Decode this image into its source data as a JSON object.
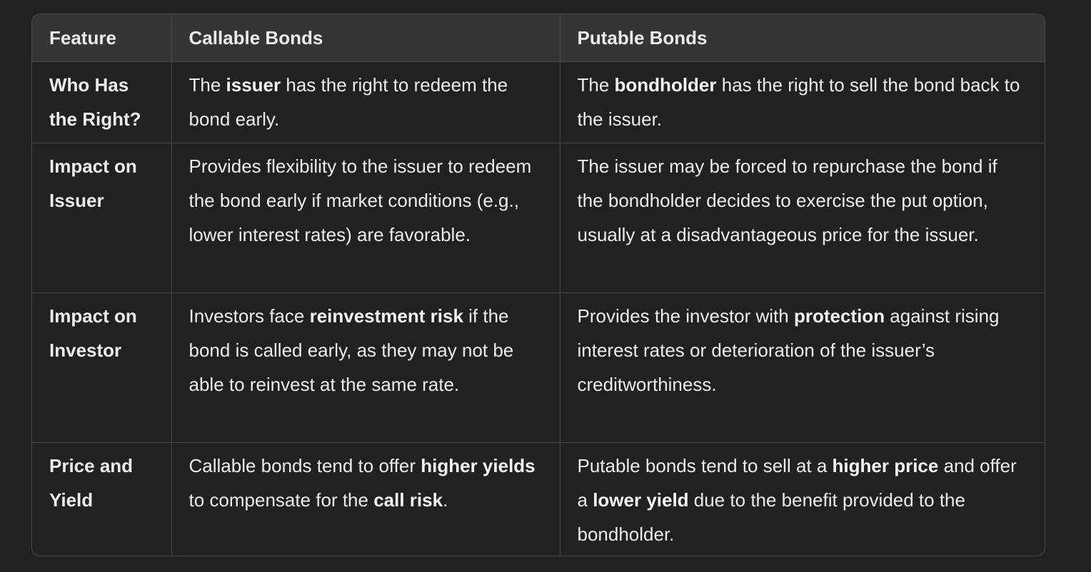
{
  "table": {
    "headers": [
      "Feature",
      "Callable Bonds",
      "Putable Bonds"
    ],
    "rows": [
      {
        "feature": "Who Has the Right?",
        "callable": [
          {
            "t": "The "
          },
          {
            "t": "issuer",
            "b": true
          },
          {
            "t": " has the right to redeem the bond early."
          }
        ],
        "putable": [
          {
            "t": "The "
          },
          {
            "t": "bondholder",
            "b": true
          },
          {
            "t": " has the right to sell the bond back to the issuer."
          }
        ]
      },
      {
        "feature": "Impact on Issuer",
        "callable": [
          {
            "t": "Provides flexibility to the issuer to redeem the bond early if market conditions (e.g., lower interest rates) are favorable."
          }
        ],
        "putable": [
          {
            "t": "The issuer may be forced to repurchase the bond if the bondholder decides to exercise the put option, usually at a disadvantageous price for the issuer."
          }
        ]
      },
      {
        "feature": "Impact on Investor",
        "callable": [
          {
            "t": "Investors face "
          },
          {
            "t": "reinvestment risk",
            "b": true
          },
          {
            "t": " if the bond is called early, as they may not be able to reinvest at the same rate."
          }
        ],
        "putable": [
          {
            "t": "Provides the investor with "
          },
          {
            "t": "protection",
            "b": true
          },
          {
            "t": " against rising interest rates or deterioration of the issuer’s creditworthiness."
          }
        ]
      },
      {
        "feature": "Price and Yield",
        "callable": [
          {
            "t": "Callable bonds tend to offer "
          },
          {
            "t": "higher yields",
            "b": true
          },
          {
            "t": " to compensate for the "
          },
          {
            "t": "call risk",
            "b": true
          },
          {
            "t": "."
          }
        ],
        "putable": [
          {
            "t": "Putable bonds tend to sell at a "
          },
          {
            "t": "higher price",
            "b": true
          },
          {
            "t": " and offer a "
          },
          {
            "t": "lower yield",
            "b": true
          },
          {
            "t": " due to the benefit provided to the bondholder."
          }
        ]
      }
    ]
  }
}
